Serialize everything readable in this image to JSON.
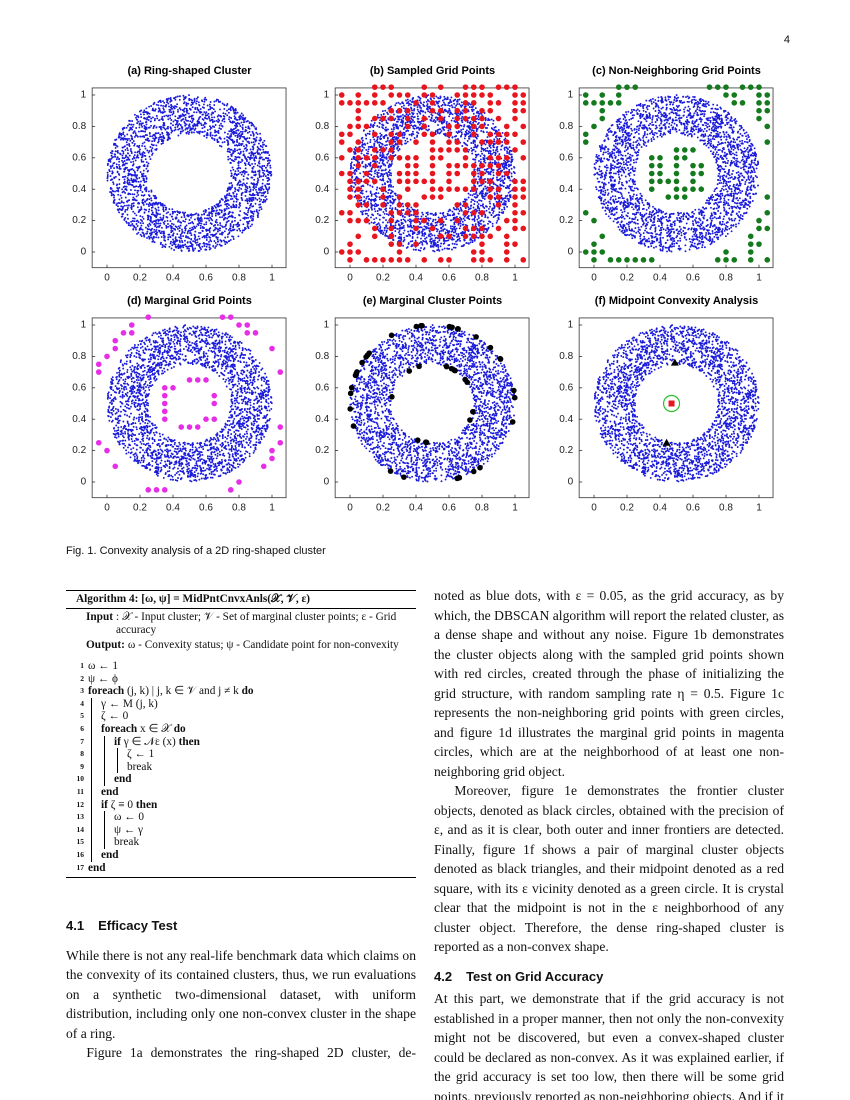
{
  "page_number": "4",
  "figure": {
    "panels": [
      {
        "title": "(a) Ring-shaped Cluster",
        "xticks": [
          0,
          0.2,
          0.4,
          0.6,
          0.8,
          1
        ],
        "yticks": [
          0,
          0.2,
          0.4,
          0.6,
          0.8,
          1
        ]
      },
      {
        "title": "(b) Sampled Grid Points",
        "xticks": [
          0,
          0.2,
          0.4,
          0.6,
          0.8,
          1
        ],
        "yticks": [
          0,
          0.2,
          0.4,
          0.6,
          0.8,
          1
        ]
      },
      {
        "title": "(c) Non-Neighboring Grid Points",
        "xticks": [
          0,
          0.2,
          0.4,
          0.6,
          0.8,
          1
        ],
        "yticks": [
          0,
          0.2,
          0.4,
          0.6,
          0.8,
          1
        ]
      },
      {
        "title": "(d) Marginal Grid Points",
        "xticks": [
          0,
          0.2,
          0.4,
          0.6,
          0.8,
          1
        ],
        "yticks": [
          0,
          0.2,
          0.4,
          0.6,
          0.8,
          1
        ]
      },
      {
        "title": "(e) Marginal Cluster Points",
        "xticks": [
          0,
          0.2,
          0.4,
          0.6,
          0.8,
          1
        ],
        "yticks": [
          0,
          0.2,
          0.4,
          0.6,
          0.8,
          1
        ]
      },
      {
        "title": "(f) Midpoint Convexity Analysis",
        "xticks": [
          0,
          0.2,
          0.4,
          0.6,
          0.8,
          1
        ],
        "yticks": [
          0,
          0.2,
          0.4,
          0.6,
          0.8,
          1
        ]
      }
    ],
    "caption": "Fig. 1. Convexity analysis of a 2D ring-shaped cluster"
  },
  "algorithm": {
    "title": "Algorithm 4: [ω, ψ] = MidPntCnvxAnls(𝒳, 𝒱, ε)",
    "input_label": "Input",
    "input": ": 𝒳 - Input cluster; 𝒱 - Set of marginal cluster points; ε - Grid accuracy",
    "output_label": "Output:",
    "output": "ω - Convexity status; ψ - Candidate point for non-convexity",
    "lines": [
      {
        "n": 1,
        "parts": [
          {
            "text": "ω ← 1"
          }
        ]
      },
      {
        "n": 2,
        "parts": [
          {
            "text": "ψ ← ϕ"
          }
        ]
      },
      {
        "n": 3,
        "parts": [
          {
            "text": "foreach",
            "bold": true
          },
          {
            "text": " (j, k) | j, k ∈ 𝒱 and j ≠ k "
          },
          {
            "text": "do",
            "bold": true
          }
        ]
      },
      {
        "n": 4,
        "parts": [
          {
            "text": "γ ← M (j, k)"
          }
        ]
      },
      {
        "n": 5,
        "parts": [
          {
            "text": "ζ ← 0"
          }
        ]
      },
      {
        "n": 6,
        "parts": [
          {
            "text": "foreach",
            "bold": true
          },
          {
            "text": " x ∈ 𝒳 "
          },
          {
            "text": "do",
            "bold": true
          }
        ]
      },
      {
        "n": 7,
        "parts": [
          {
            "text": "if",
            "bold": true
          },
          {
            "text": " γ ∈ 𝒩ε (x) "
          },
          {
            "text": "then",
            "bold": true
          }
        ]
      },
      {
        "n": 8,
        "parts": [
          {
            "text": "ζ ← 1"
          }
        ]
      },
      {
        "n": 9,
        "parts": [
          {
            "text": "break"
          }
        ]
      },
      {
        "n": 10,
        "parts": [
          {
            "text": "end",
            "bold": true
          }
        ]
      },
      {
        "n": 11,
        "parts": [
          {
            "text": "end",
            "bold": true
          }
        ]
      },
      {
        "n": 12,
        "parts": [
          {
            "text": "if",
            "bold": true
          },
          {
            "text": " ζ ≡ 0 "
          },
          {
            "text": "then",
            "bold": true
          }
        ]
      },
      {
        "n": 13,
        "parts": [
          {
            "text": "ω ← 0"
          }
        ]
      },
      {
        "n": 14,
        "parts": [
          {
            "text": "ψ ← γ"
          }
        ]
      },
      {
        "n": 15,
        "parts": [
          {
            "text": "break"
          }
        ]
      },
      {
        "n": 16,
        "parts": [
          {
            "text": "end",
            "bold": true
          }
        ]
      },
      {
        "n": 17,
        "parts": [
          {
            "text": "end",
            "bold": true
          }
        ]
      }
    ]
  },
  "left_column": {
    "section": {
      "number": "4.1",
      "title": "Efficacy Test"
    },
    "paragraphs": [
      "While there is not any real-life benchmark data which claims on the convexity of its contained clusters, thus, we run evaluations on a synthetic two-dimensional dataset, with uniform distribution, including only one non-convex cluster in the shape of a ring.",
      "Figure 1a demonstrates the ring-shaped 2D cluster, de-"
    ]
  },
  "right_column": {
    "paragraphs": [
      "noted as blue dots, with ε = 0.05, as the grid accuracy, as by which, the DBSCAN algorithm will report the related cluster, as a dense shape and without any noise. Figure 1b demonstrates the cluster objects along with the sampled grid points shown with red circles, created through the phase of initializing the grid structure, with random sampling rate η = 0.5. Figure 1c represents the non-neighboring grid points with green circles, and figure 1d illustrates the marginal grid points in magenta circles, which are at the neighborhood of at least one non-neighboring grid object.",
      "Moreover, figure 1e demonstrates the frontier cluster objects, denoted as black circles, obtained with the precision of ε, and as it is clear, both outer and inner frontiers are detected. Finally, figure 1f shows a pair of marginal cluster objects denoted as black triangles, and their midpoint denoted as a red square, with its ε vicinity denoted as a green circle. It is crystal clear that the midpoint is not in the ε neighborhood of any cluster object. Therefore, the dense ring-shaped cluster is reported as a non-convex shape."
    ],
    "section": {
      "number": "4.2",
      "title": "Test on Grid Accuracy"
    },
    "paragraphs_after": [
      "At this part, we demonstrate that if the grid accuracy is not established in a proper manner, then not only the non-convexity might not be discovered, but even a convex-shaped cluster could be declared as non-convex. As it was explained earlier, if the grid accuracy is set too low, then there will be some grid points, previously reported as non-neighboring objects. And if it is set too high, the consequent"
    ]
  }
}
